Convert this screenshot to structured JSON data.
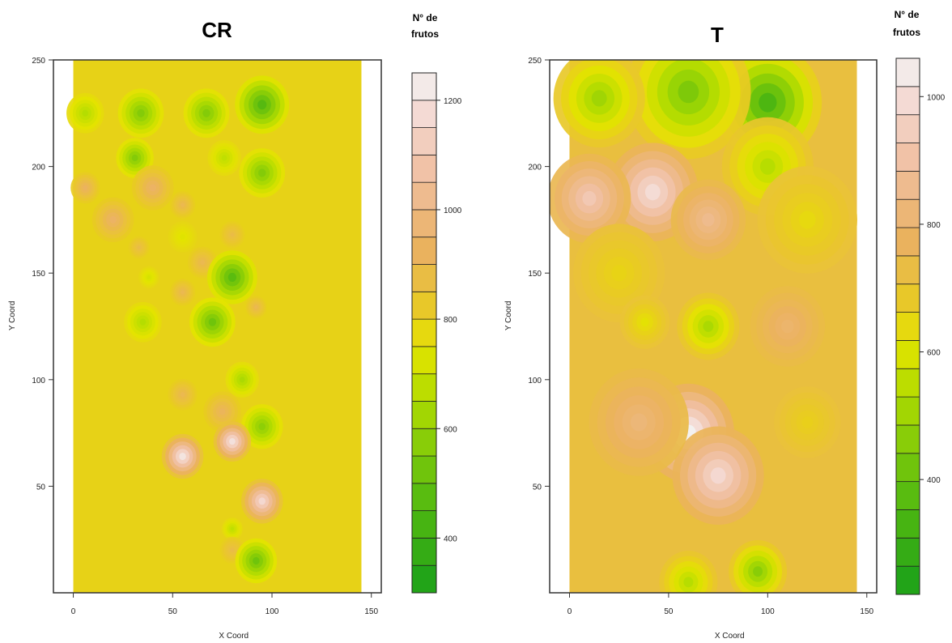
{
  "chart_data": [
    {
      "type": "heatmap",
      "title": "CR",
      "xlabel": "X Coord",
      "ylabel": "Y Coord",
      "xlim": [
        -10,
        155
      ],
      "ylim": [
        0,
        250
      ],
      "field_x_range": [
        0,
        145
      ],
      "field_y_range": [
        0,
        250
      ],
      "xticks": [
        "0",
        "50",
        "100",
        "150"
      ],
      "yticks": [
        "50",
        "100",
        "150",
        "200",
        "250"
      ],
      "legend_title": [
        "N° de",
        "frutos"
      ],
      "legend_range": [
        300,
        1250
      ],
      "legend_ticks": [
        "400",
        "600",
        "800",
        "1000",
        "1200"
      ],
      "background_value": 790,
      "features": [
        {
          "x": 6,
          "y": 225,
          "r": 9,
          "value": 660
        },
        {
          "x": 34,
          "y": 225,
          "r": 11,
          "value": 560
        },
        {
          "x": 67,
          "y": 225,
          "r": 11,
          "value": 560
        },
        {
          "x": 95,
          "y": 229,
          "r": 13,
          "value": 460
        },
        {
          "x": 31,
          "y": 204,
          "r": 9,
          "value": 560
        },
        {
          "x": 76,
          "y": 204,
          "r": 8,
          "value": 680
        },
        {
          "x": 95,
          "y": 197,
          "r": 11,
          "value": 560
        },
        {
          "x": 6,
          "y": 190,
          "r": 7,
          "value": 930
        },
        {
          "x": 40,
          "y": 190,
          "r": 10,
          "value": 940
        },
        {
          "x": 55,
          "y": 182,
          "r": 6,
          "value": 900
        },
        {
          "x": 20,
          "y": 175,
          "r": 10,
          "value": 940
        },
        {
          "x": 80,
          "y": 168,
          "r": 6,
          "value": 880
        },
        {
          "x": 55,
          "y": 167,
          "r": 7,
          "value": 740
        },
        {
          "x": 33,
          "y": 162,
          "r": 5,
          "value": 880
        },
        {
          "x": 65,
          "y": 155,
          "r": 7,
          "value": 900
        },
        {
          "x": 80,
          "y": 148,
          "r": 12,
          "value": 470
        },
        {
          "x": 38,
          "y": 148,
          "r": 5,
          "value": 720
        },
        {
          "x": 55,
          "y": 141,
          "r": 6,
          "value": 900
        },
        {
          "x": 92,
          "y": 134,
          "r": 5,
          "value": 900
        },
        {
          "x": 35,
          "y": 127,
          "r": 9,
          "value": 660
        },
        {
          "x": 70,
          "y": 127,
          "r": 11,
          "value": 520
        },
        {
          "x": 85,
          "y": 100,
          "r": 8,
          "value": 640
        },
        {
          "x": 55,
          "y": 93,
          "r": 7,
          "value": 900
        },
        {
          "x": 75,
          "y": 85,
          "r": 9,
          "value": 920
        },
        {
          "x": 95,
          "y": 78,
          "r": 10,
          "value": 580
        },
        {
          "x": 80,
          "y": 71,
          "r": 9,
          "value": 1200
        },
        {
          "x": 55,
          "y": 64,
          "r": 10,
          "value": 1210
        },
        {
          "x": 95,
          "y": 43,
          "r": 10,
          "value": 1170
        },
        {
          "x": 80,
          "y": 30,
          "r": 5,
          "value": 680
        },
        {
          "x": 80,
          "y": 20,
          "r": 6,
          "value": 880
        },
        {
          "x": 92,
          "y": 15,
          "r": 10,
          "value": 520
        }
      ]
    },
    {
      "type": "heatmap",
      "title": "T",
      "xlabel": "X Coord",
      "ylabel": "Y Coord",
      "xlim": [
        -10,
        155
      ],
      "ylim": [
        0,
        250
      ],
      "field_x_range": [
        0,
        145
      ],
      "field_y_range": [
        0,
        250
      ],
      "xticks": [
        "0",
        "50",
        "100",
        "150"
      ],
      "yticks": [
        "50",
        "100",
        "150",
        "200",
        "250"
      ],
      "legend_title": [
        "N° de",
        "frutos"
      ],
      "legend_range": [
        220,
        1060
      ],
      "legend_ticks": [
        "400",
        "600",
        "800",
        "1000"
      ],
      "background_value": 720,
      "features": [
        {
          "x": 100,
          "y": 230,
          "r": 26,
          "value": 340
        },
        {
          "x": 60,
          "y": 235,
          "r": 30,
          "value": 440
        },
        {
          "x": 15,
          "y": 232,
          "r": 22,
          "value": 500
        },
        {
          "x": 100,
          "y": 200,
          "r": 22,
          "value": 540
        },
        {
          "x": 120,
          "y": 175,
          "r": 24,
          "value": 640
        },
        {
          "x": 42,
          "y": 188,
          "r": 22,
          "value": 1000
        },
        {
          "x": 10,
          "y": 185,
          "r": 20,
          "value": 930
        },
        {
          "x": 70,
          "y": 175,
          "r": 18,
          "value": 860
        },
        {
          "x": 25,
          "y": 150,
          "r": 22,
          "value": 650
        },
        {
          "x": 70,
          "y": 125,
          "r": 15,
          "value": 520
        },
        {
          "x": 38,
          "y": 127,
          "r": 12,
          "value": 620
        },
        {
          "x": 110,
          "y": 125,
          "r": 18,
          "value": 800
        },
        {
          "x": 60,
          "y": 75,
          "r": 22,
          "value": 1060
        },
        {
          "x": 75,
          "y": 55,
          "r": 22,
          "value": 990
        },
        {
          "x": 35,
          "y": 80,
          "r": 24,
          "value": 820
        },
        {
          "x": 120,
          "y": 80,
          "r": 16,
          "value": 660
        },
        {
          "x": 95,
          "y": 10,
          "r": 14,
          "value": 460
        },
        {
          "x": 60,
          "y": 5,
          "r": 14,
          "value": 540
        }
      ]
    }
  ]
}
